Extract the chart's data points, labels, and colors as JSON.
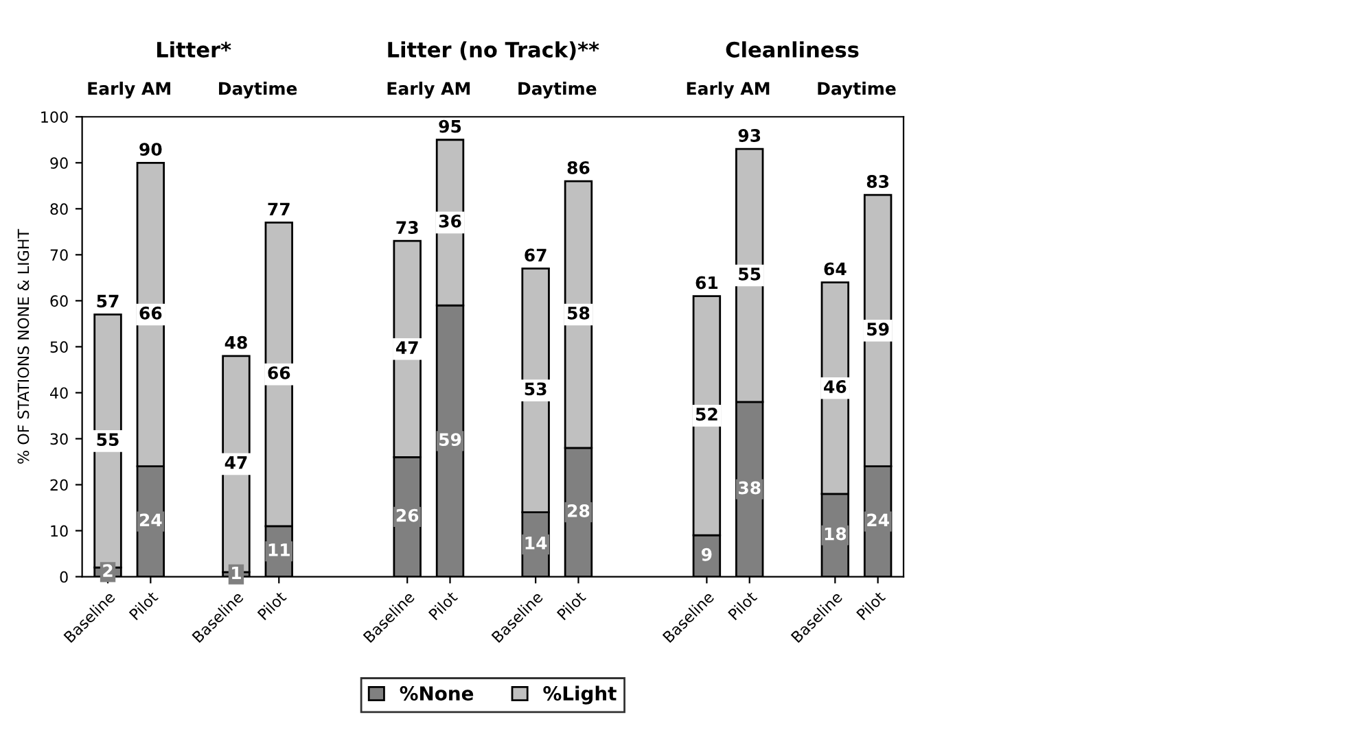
{
  "chart_data": {
    "type": "bar",
    "stacked": true,
    "ylabel": "% OF STATIONS NONE & LIGHT",
    "categories": [
      "Baseline",
      "Pilot",
      null,
      "Baseline",
      "Pilot",
      null,
      null,
      "Baseline",
      "Pilot",
      null,
      "Baseline",
      "Pilot",
      null,
      null,
      "Baseline",
      "Pilot",
      null,
      "Baseline",
      "Pilot"
    ],
    "series": [
      {
        "name": "%None",
        "color": "#808080",
        "values": [
          2,
          24,
          null,
          1,
          11,
          null,
          null,
          26,
          59,
          null,
          14,
          28,
          null,
          null,
          9,
          38,
          null,
          18,
          24
        ]
      },
      {
        "name": "%Light",
        "color": "#c0c0c0",
        "values": [
          55,
          66,
          null,
          47,
          66,
          null,
          null,
          47,
          36,
          null,
          53,
          58,
          null,
          null,
          52,
          55,
          null,
          46,
          59
        ]
      }
    ],
    "totals": [
      "57",
      "90",
      null,
      "48",
      "77",
      null,
      null,
      "73",
      "95",
      null,
      "67",
      "86",
      null,
      null,
      "61",
      "93",
      null,
      "64",
      "83"
    ],
    "annotations": [
      "Litter*",
      "Early AM",
      "Daytime",
      "Litter (no Track)**",
      "Early AM",
      "Daytime",
      "Cleanliness",
      "Early AM",
      "Daytime"
    ],
    "ylim": [
      0,
      100
    ],
    "yticks": [
      0,
      10,
      20,
      30,
      40,
      50,
      60,
      70,
      80,
      90,
      100
    ],
    "data_labels": true,
    "grid": false,
    "legend": "bottom"
  }
}
